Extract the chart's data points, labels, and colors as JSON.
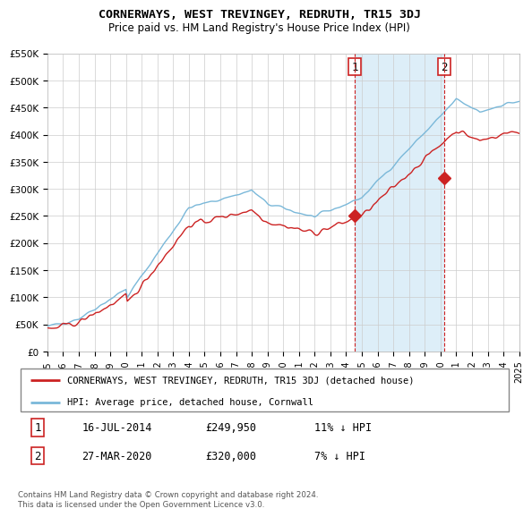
{
  "title": "CORNERWAYS, WEST TREVINGEY, REDRUTH, TR15 3DJ",
  "subtitle": "Price paid vs. HM Land Registry's House Price Index (HPI)",
  "ylim": [
    0,
    550000
  ],
  "yticks": [
    0,
    50000,
    100000,
    150000,
    200000,
    250000,
    300000,
    350000,
    400000,
    450000,
    500000,
    550000
  ],
  "ytick_labels": [
    "£0",
    "£50K",
    "£100K",
    "£150K",
    "£200K",
    "£250K",
    "£300K",
    "£350K",
    "£400K",
    "£450K",
    "£500K",
    "£550K"
  ],
  "x_start_year": 1995,
  "x_end_year": 2025,
  "sale1_date": 2014.54,
  "sale1_price": 249950,
  "sale1_label": "1",
  "sale1_hpi_diff": "11% ↓ HPI",
  "sale1_date_str": "16-JUL-2014",
  "sale2_date": 2020.24,
  "sale2_price": 320000,
  "sale2_label": "2",
  "sale2_hpi_diff": "7% ↓ HPI",
  "sale2_date_str": "27-MAR-2020",
  "hpi_color": "#7ab8d9",
  "price_color": "#cc2222",
  "grid_color": "#cccccc",
  "bg_color": "#ffffff",
  "shade_color": "#ddeef8",
  "legend_label_red": "CORNERWAYS, WEST TREVINGEY, REDRUTH, TR15 3DJ (detached house)",
  "legend_label_blue": "HPI: Average price, detached house, Cornwall",
  "footer": "Contains HM Land Registry data © Crown copyright and database right 2024.\nThis data is licensed under the Open Government Licence v3.0."
}
